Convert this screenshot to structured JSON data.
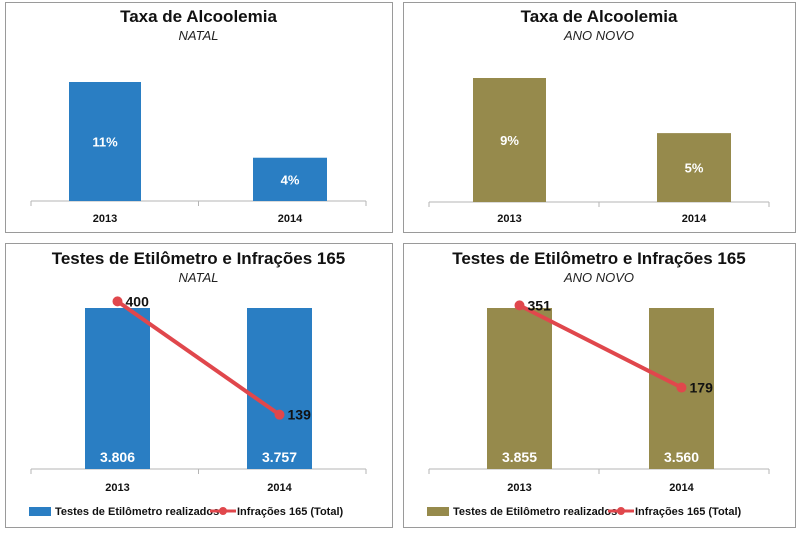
{
  "colors": {
    "natal": "#2a7ec3",
    "ano_novo": "#968a4c",
    "line": "#e0474c",
    "border": "#9a9a9a",
    "axis": "#b5b5b5"
  },
  "chart_data": [
    {
      "type": "bar",
      "title": "Taxa de Alcoolemia",
      "subtitle": "NATAL",
      "categories": [
        "2013",
        "2014"
      ],
      "values": [
        11,
        4
      ],
      "value_labels": [
        "11%",
        "4%"
      ],
      "unit": "%",
      "ylim": [
        0,
        12
      ],
      "color_key": "natal"
    },
    {
      "type": "bar",
      "title": "Taxa de Alcoolemia",
      "subtitle": "ANO NOVO",
      "categories": [
        "2013",
        "2014"
      ],
      "values": [
        9,
        5
      ],
      "value_labels": [
        "9%",
        "5%"
      ],
      "unit": "%",
      "ylim": [
        0,
        10
      ],
      "color_key": "ano_novo"
    },
    {
      "type": "bar+line",
      "title": "Testes de Etilômetro e Infrações 165",
      "subtitle": "NATAL",
      "categories": [
        "2013",
        "2014"
      ],
      "series": [
        {
          "name": "Testes de Etilômetro realizados",
          "type": "bar",
          "values": [
            3806,
            3757
          ],
          "value_labels": [
            "3.806",
            "3.757"
          ]
        },
        {
          "name": "Infrações 165 (Total)",
          "type": "line",
          "values": [
            400,
            139
          ],
          "value_labels": [
            "400",
            "139"
          ],
          "ylim": [
            0,
            440
          ]
        }
      ],
      "legend": "bottom",
      "color_key": "natal"
    },
    {
      "type": "bar+line",
      "title": "Testes de Etilômetro e Infrações 165",
      "subtitle": "ANO NOVO",
      "categories": [
        "2013",
        "2014"
      ],
      "series": [
        {
          "name": "Testes de Etilômetro realizados",
          "type": "bar",
          "values": [
            3855,
            3560
          ],
          "value_labels": [
            "3.855",
            "3.560"
          ]
        },
        {
          "name": "Infrações 165 (Total)",
          "type": "line",
          "values": [
            351,
            179
          ],
          "value_labels": [
            "351",
            "179"
          ],
          "ylim": [
            0,
            400
          ]
        }
      ],
      "legend": "bottom",
      "color_key": "ano_novo"
    }
  ]
}
